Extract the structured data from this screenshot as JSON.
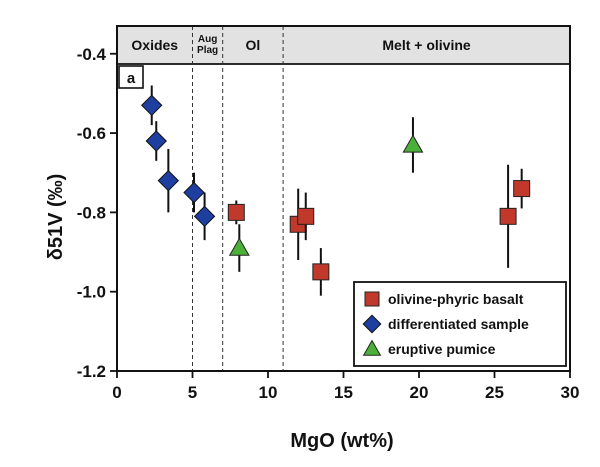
{
  "chart_data": {
    "type": "scatter",
    "panel_label": "a",
    "xlabel": "MgO (wt%)",
    "ylabel": "δ51V (‰)",
    "xlim": [
      0,
      30
    ],
    "ylim": [
      -1.2,
      -0.33
    ],
    "xticks": [
      0,
      5,
      10,
      15,
      20,
      25,
      30
    ],
    "yticks": [
      -1.2,
      -1.0,
      -0.8,
      -0.6,
      -0.4
    ],
    "ytick_labels": [
      "-1.2",
      "-1.0",
      "-0.8",
      "-0.6",
      "-0.4"
    ],
    "grid": false,
    "legend_position": "bottom-right",
    "phase_bands": [
      {
        "label": "Oxides",
        "x_start": 0,
        "x_end": 5
      },
      {
        "label": "Aug Plag",
        "label_lines": [
          "Aug",
          "Plag"
        ],
        "x_start": 5,
        "x_end": 7
      },
      {
        "label": "Ol",
        "x_start": 7,
        "x_end": 11
      },
      {
        "label": "Melt + olivine",
        "x_start": 11,
        "x_end": 30
      }
    ],
    "boundaries": [
      5,
      7,
      11
    ],
    "series": [
      {
        "name": "olivine-phyric basalt",
        "marker": "square",
        "color": "#c0392b",
        "points": [
          {
            "x": 7.9,
            "y": -0.8,
            "err": 0.03
          },
          {
            "x": 12.0,
            "y": -0.83,
            "err": 0.09
          },
          {
            "x": 12.5,
            "y": -0.81,
            "err": 0.06
          },
          {
            "x": 13.5,
            "y": -0.95,
            "err": 0.06
          },
          {
            "x": 25.9,
            "y": -0.81,
            "err": 0.13
          },
          {
            "x": 26.8,
            "y": -0.74,
            "err": 0.05
          }
        ]
      },
      {
        "name": "differentiated sample",
        "marker": "diamond",
        "color": "#1f3fa0",
        "points": [
          {
            "x": 2.3,
            "y": -0.53,
            "err": 0.05
          },
          {
            "x": 2.6,
            "y": -0.62,
            "err": 0.05
          },
          {
            "x": 3.4,
            "y": -0.72,
            "err": 0.08
          },
          {
            "x": 5.1,
            "y": -0.75,
            "err": 0.05
          },
          {
            "x": 5.8,
            "y": -0.81,
            "err": 0.06
          }
        ]
      },
      {
        "name": "eruptive pumice",
        "marker": "triangle",
        "color": "#4caf3a",
        "points": [
          {
            "x": 8.1,
            "y": -0.89,
            "err": 0.06
          },
          {
            "x": 19.6,
            "y": -0.63,
            "err": 0.07
          }
        ]
      }
    ]
  }
}
